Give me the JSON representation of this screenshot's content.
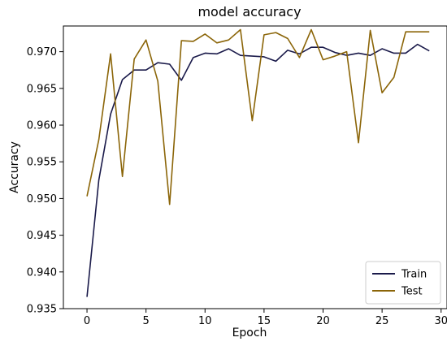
{
  "chart_data": {
    "type": "line",
    "title": "model accuracy",
    "xlabel": "Epoch",
    "ylabel": "Accuracy",
    "xlim": [
      -2,
      30.5
    ],
    "ylim": [
      0.935,
      0.9735
    ],
    "x_ticks": [
      0,
      5,
      10,
      15,
      20,
      25,
      30
    ],
    "y_ticks": [
      0.935,
      0.94,
      0.945,
      0.95,
      0.955,
      0.96,
      0.965,
      0.97
    ],
    "y_tick_labels": [
      "0.935",
      "0.940",
      "0.945",
      "0.950",
      "0.955",
      "0.960",
      "0.965",
      "0.970"
    ],
    "x": [
      0,
      1,
      2,
      3,
      4,
      5,
      6,
      7,
      8,
      9,
      10,
      11,
      12,
      13,
      14,
      15,
      16,
      17,
      18,
      19,
      20,
      21,
      22,
      23,
      24,
      25,
      26,
      27,
      28,
      29
    ],
    "series": [
      {
        "name": "Train",
        "color": "#1a1a4a",
        "values": [
          0.9366,
          0.9525,
          0.9615,
          0.9662,
          0.9675,
          0.9675,
          0.9685,
          0.9683,
          0.9661,
          0.9692,
          0.9698,
          0.9697,
          0.9704,
          0.9695,
          0.9694,
          0.9693,
          0.9687,
          0.9702,
          0.9697,
          0.9706,
          0.9706,
          0.9699,
          0.9695,
          0.9698,
          0.9695,
          0.9704,
          0.9698,
          0.9698,
          0.971,
          0.9701
        ]
      },
      {
        "name": "Test",
        "color": "#8b6508",
        "values": [
          0.9503,
          0.958,
          0.9697,
          0.953,
          0.969,
          0.9716,
          0.966,
          0.9492,
          0.9715,
          0.9714,
          0.9724,
          0.9712,
          0.9716,
          0.973,
          0.9606,
          0.9723,
          0.9726,
          0.9718,
          0.9692,
          0.973,
          0.9689,
          0.9694,
          0.97,
          0.9576,
          0.9729,
          0.9644,
          0.9665,
          0.9727,
          0.9727,
          0.9727
        ]
      }
    ],
    "legend": {
      "position": "bottom-right",
      "labels": [
        "Train",
        "Test"
      ]
    },
    "grid": false
  }
}
